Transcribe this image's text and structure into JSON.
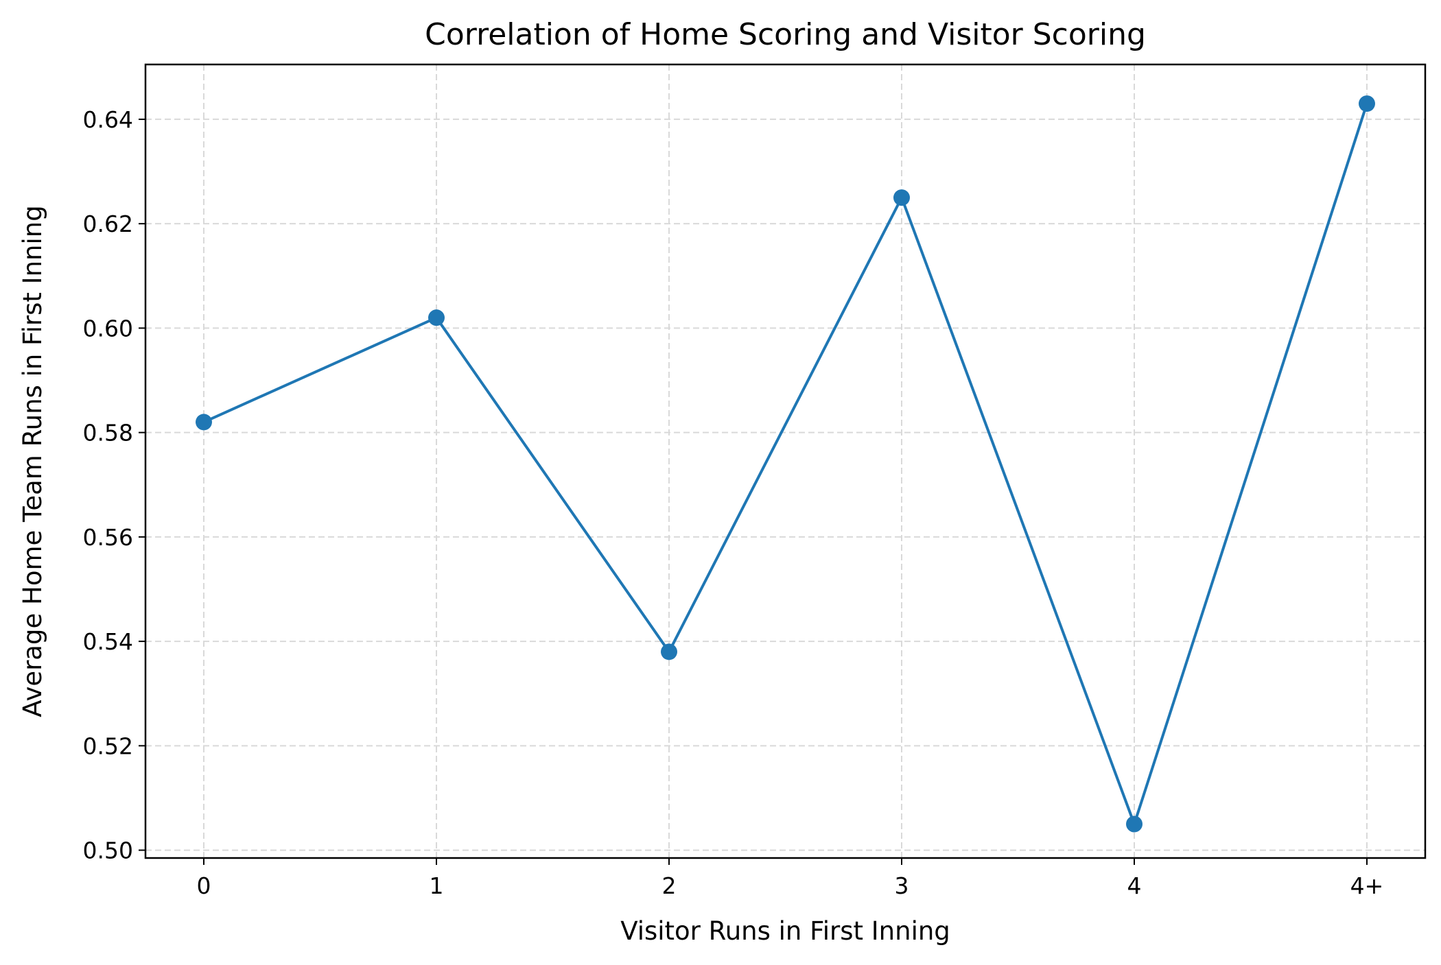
{
  "chart_data": {
    "type": "line",
    "title": "Correlation of Home Scoring and Visitor Scoring",
    "xlabel": "Visitor Runs in First Inning",
    "ylabel": "Average Home Team Runs in First Inning",
    "categories": [
      "0",
      "1",
      "2",
      "3",
      "4",
      "4+"
    ],
    "series": [
      {
        "values": [
          0.582,
          0.602,
          0.538,
          0.625,
          0.505,
          0.643
        ],
        "color": "#1f77b4",
        "marker": "circle"
      }
    ],
    "ylim": [
      0.4985,
      0.6505
    ],
    "yticks": [
      0.5,
      0.52,
      0.54,
      0.56,
      0.58,
      0.6,
      0.62,
      0.64
    ],
    "ytick_labels": [
      "0.50",
      "0.52",
      "0.54",
      "0.56",
      "0.58",
      "0.60",
      "0.62",
      "0.64"
    ],
    "grid": true,
    "grid_style": "dashed",
    "grid_color": "#d9d9d9",
    "legend": false
  }
}
